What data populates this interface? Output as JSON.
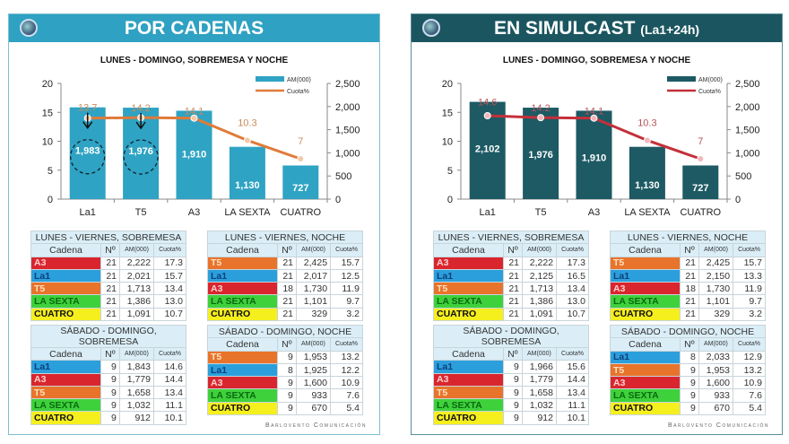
{
  "panels": [
    {
      "title": "POR CADENAS",
      "subtitle": "",
      "header_color": "#2fa1c2",
      "bar_color": "#2fa3c3",
      "line_color": "#e07b39",
      "label_color": "#c98a5a",
      "chart_data": {
        "type": "bar",
        "title": "LUNES - DOMINGO, SOBREMESA Y NOCHE",
        "categories": [
          "La1",
          "T5",
          "A3",
          "LA SEXTA",
          "CUATRO"
        ],
        "series": [
          {
            "name": "AM(000)",
            "type": "bar",
            "axis": "right",
            "values": [
              1983,
              1976,
              1910,
              1130,
              727
            ]
          },
          {
            "name": "Cuota%",
            "type": "line",
            "axis": "left",
            "values": [
              13.7,
              14.2,
              14.1,
              10.3,
              7
            ]
          }
        ],
        "ylim_left": [
          0,
          20
        ],
        "yticks_left": [
          "0",
          "5",
          "10",
          "15",
          "20"
        ],
        "ylim_right": [
          0,
          2500
        ],
        "yticks_right": [
          "0",
          "500",
          "1,000",
          "1,500",
          "2,000",
          "2,500"
        ],
        "legend": "top-right",
        "annotations": [
          "arrow-and-dashed-circle on La1",
          "arrow-and-dashed-circle on T5"
        ],
        "bar_labels": [
          "1,983",
          "1,976",
          "1,910",
          "1,130",
          "727"
        ],
        "line_labels": [
          "13.7",
          "14.2",
          "14.1",
          "10.3",
          "7"
        ]
      },
      "tables": [
        {
          "title": "LUNES - VIERNES, SOBREMESA",
          "rows": [
            [
              "A3",
              "21",
              "2,222",
              "17.3"
            ],
            [
              "La1",
              "21",
              "2,021",
              "15.7"
            ],
            [
              "T5",
              "21",
              "1,713",
              "13.4"
            ],
            [
              "LA SEXTA",
              "21",
              "1,386",
              "13.0"
            ],
            [
              "CUATRO",
              "21",
              "1,091",
              "10.7"
            ]
          ]
        },
        {
          "title": "LUNES - VIERNES, NOCHE",
          "rows": [
            [
              "T5",
              "21",
              "2,425",
              "15.7"
            ],
            [
              "La1",
              "21",
              "2,017",
              "12.5"
            ],
            [
              "A3",
              "18",
              "1,730",
              "11.9"
            ],
            [
              "LA SEXTA",
              "21",
              "1,101",
              "9.7"
            ],
            [
              "CUATRO",
              "21",
              "329",
              "3.2"
            ]
          ]
        },
        {
          "title": "SÁBADO - DOMINGO, SOBREMESA",
          "rows": [
            [
              "La1",
              "9",
              "1,843",
              "14.6"
            ],
            [
              "A3",
              "9",
              "1,779",
              "14.4"
            ],
            [
              "T5",
              "9",
              "1,658",
              "13.4"
            ],
            [
              "LA SEXTA",
              "9",
              "1,032",
              "11.1"
            ],
            [
              "CUATRO",
              "9",
              "912",
              "10.1"
            ]
          ]
        },
        {
          "title": "SÁBADO - DOMINGO, NOCHE",
          "rows": [
            [
              "T5",
              "9",
              "1,953",
              "13.2"
            ],
            [
              "La1",
              "8",
              "1,925",
              "12.2"
            ],
            [
              "A3",
              "9",
              "1,600",
              "10.9"
            ],
            [
              "LA SEXTA",
              "9",
              "933",
              "7.6"
            ],
            [
              "CUATRO",
              "9",
              "670",
              "5.4"
            ]
          ]
        }
      ]
    },
    {
      "title": "EN SIMULCAST",
      "subtitle": "(La1+24h)",
      "header_color": "#1b5660",
      "bar_color": "#1d5a64",
      "line_color": "#c4303a",
      "label_color": "#b5545a",
      "chart_data": {
        "type": "bar",
        "title": "LUNES - DOMINGO, SOBREMESA Y NOCHE",
        "categories": [
          "La1",
          "T5",
          "A3",
          "LA SEXTA",
          "CUATRO"
        ],
        "series": [
          {
            "name": "AM(000)",
            "type": "bar",
            "axis": "right",
            "values": [
              2102,
              1976,
              1910,
              1130,
              727
            ]
          },
          {
            "name": "Cuota%",
            "type": "line",
            "axis": "left",
            "values": [
              14.6,
              14.2,
              14.1,
              10.3,
              7
            ]
          }
        ],
        "ylim_left": [
          0,
          20
        ],
        "yticks_left": [
          "0",
          "5",
          "10",
          "15",
          "20"
        ],
        "ylim_right": [
          0,
          2500
        ],
        "yticks_right": [
          "0",
          "500",
          "1,000",
          "1,500",
          "2,000",
          "2,500"
        ],
        "legend": "top-right",
        "bar_labels": [
          "2,102",
          "1,976",
          "1,910",
          "1,130",
          "727"
        ],
        "line_labels": [
          "14.6",
          "14.2",
          "14.1",
          "10.3",
          "7"
        ]
      },
      "tables": [
        {
          "title": "LUNES - VIERNES, SOBREMESA",
          "rows": [
            [
              "A3",
              "21",
              "2,222",
              "17.3"
            ],
            [
              "La1",
              "21",
              "2,125",
              "16.5"
            ],
            [
              "T5",
              "21",
              "1,713",
              "13.4"
            ],
            [
              "LA SEXTA",
              "21",
              "1,386",
              "13.0"
            ],
            [
              "CUATRO",
              "21",
              "1,091",
              "10.7"
            ]
          ]
        },
        {
          "title": "LUNES - VIERNES, NOCHE",
          "rows": [
            [
              "T5",
              "21",
              "2,425",
              "15.7"
            ],
            [
              "La1",
              "21",
              "2,150",
              "13.3"
            ],
            [
              "A3",
              "18",
              "1,730",
              "11.9"
            ],
            [
              "LA SEXTA",
              "21",
              "1,101",
              "9.7"
            ],
            [
              "CUATRO",
              "21",
              "329",
              "3.2"
            ]
          ]
        },
        {
          "title": "SÁBADO - DOMINGO, SOBREMESA",
          "rows": [
            [
              "La1",
              "9",
              "1,966",
              "15.6"
            ],
            [
              "A3",
              "9",
              "1,779",
              "14.4"
            ],
            [
              "T5",
              "9",
              "1,658",
              "13.4"
            ],
            [
              "LA SEXTA",
              "9",
              "1,032",
              "11.1"
            ],
            [
              "CUATRO",
              "9",
              "912",
              "10.1"
            ]
          ]
        },
        {
          "title": "SÁBADO - DOMINGO, NOCHE",
          "rows": [
            [
              "La1",
              "8",
              "2,033",
              "12.9"
            ],
            [
              "T5",
              "9",
              "1,953",
              "13.2"
            ],
            [
              "A3",
              "9",
              "1,600",
              "10.9"
            ],
            [
              "LA SEXTA",
              "9",
              "933",
              "7.6"
            ],
            [
              "CUATRO",
              "9",
              "670",
              "5.4"
            ]
          ]
        }
      ]
    }
  ],
  "table_headers": [
    "Cadena",
    "Nº",
    "AM(000)",
    "Cuota%"
  ],
  "channel_colors": {
    "A3": "#d9262e",
    "La1": "#2b9fdc",
    "T5": "#e8742c",
    "LA SEXTA": "#3fd13c",
    "CUATRO": "#f6ef1e"
  },
  "channel_text_colors": {
    "A3": "#ffd0d0",
    "La1": "#0d3f7a",
    "T5": "#ffe0c0",
    "LA SEXTA": "#0a6a10",
    "CUATRO": "#111111"
  },
  "footer": "Barlovento Comunicación"
}
